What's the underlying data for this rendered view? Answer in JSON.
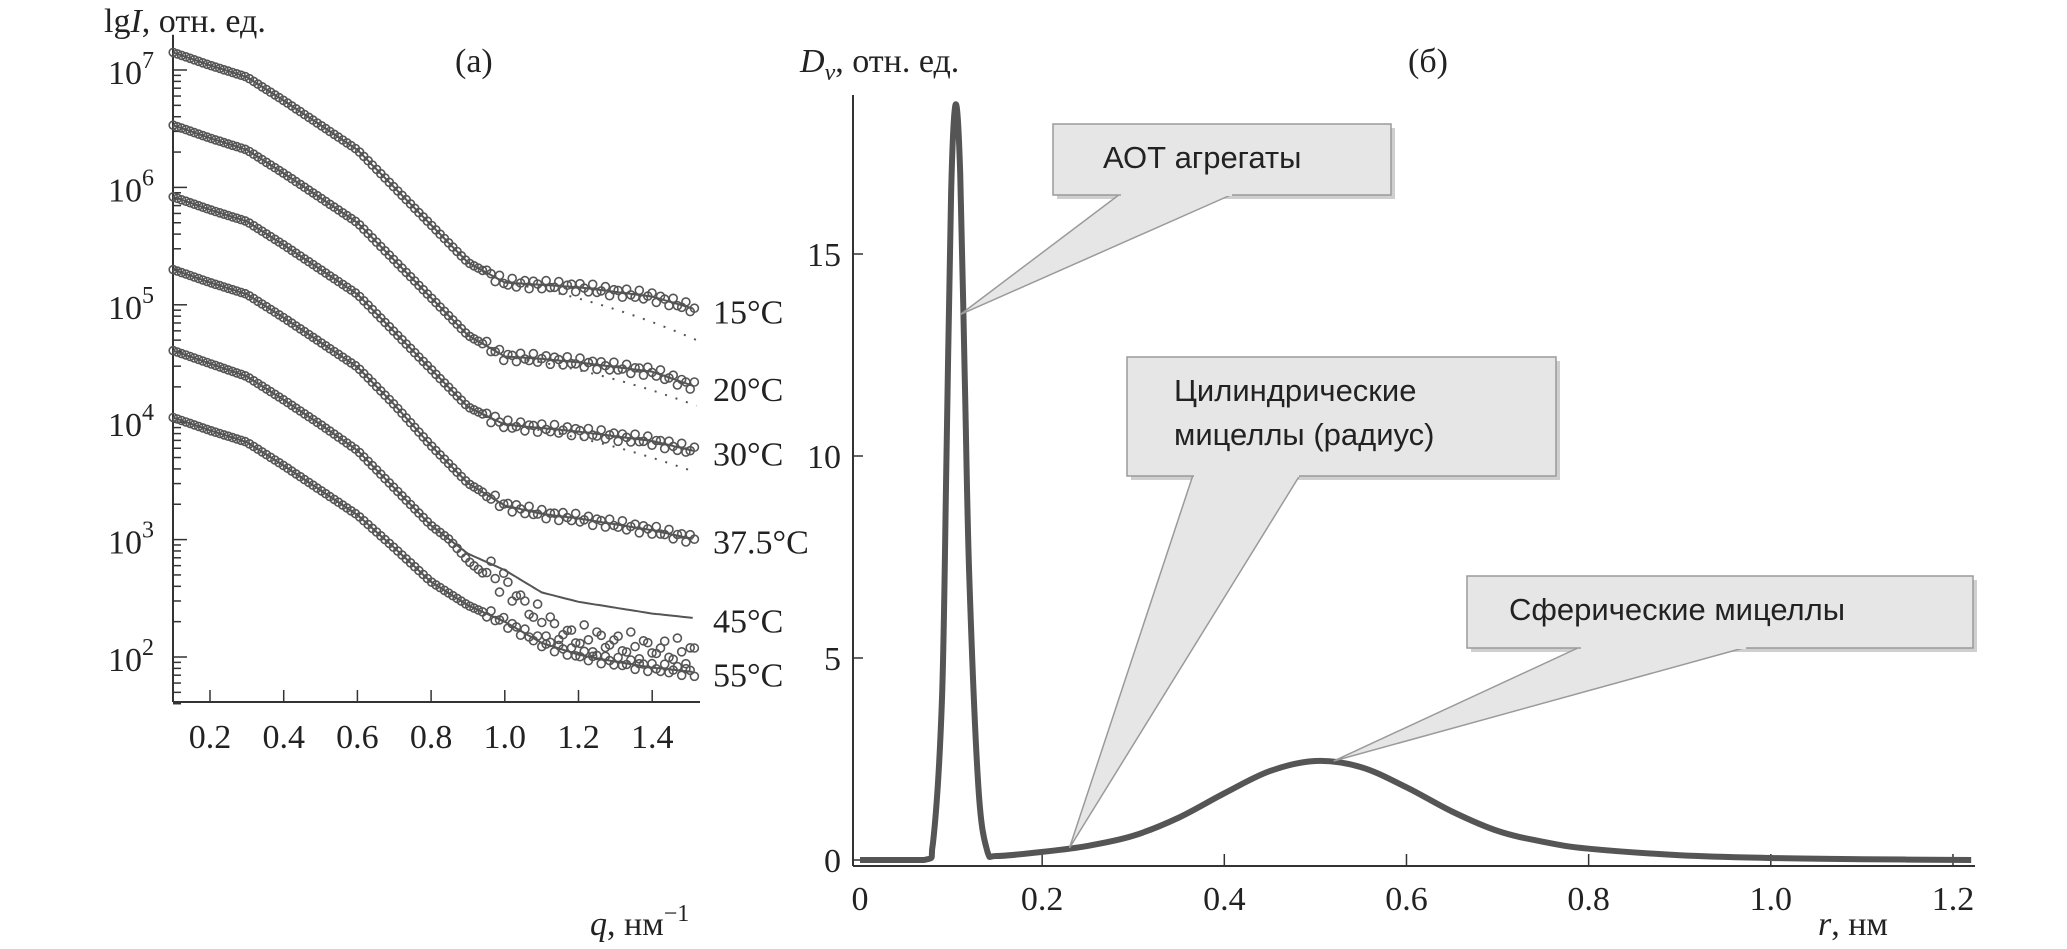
{
  "chart_data": [
    {
      "type": "line",
      "panel_label": "(а)",
      "ylabel": "lgI, отн. ед.",
      "ylabel_parts": {
        "pre": "lg",
        "ital": "I",
        "post": ", отн. ед."
      },
      "xlabel_parts": {
        "ital": "q",
        "post": ", нм",
        "sup": "−1"
      },
      "xlabel": "q, нм−1",
      "yscale": "log",
      "xlim": [
        0.1,
        1.53
      ],
      "ylim_log10": [
        1.6,
        7.3
      ],
      "x_ticks": [
        0.2,
        0.4,
        0.6,
        0.8,
        1.0,
        1.2,
        1.4
      ],
      "x_tick_labels": [
        "0.2",
        "0.4",
        "0.6",
        "0.8",
        "1.0",
        "1.2",
        "1.4"
      ],
      "y_ticks_log10": [
        2,
        3,
        4,
        5,
        6,
        7
      ],
      "y_tick_labels": [
        {
          "base": "10",
          "exp": "2"
        },
        {
          "base": "10",
          "exp": "3"
        },
        {
          "base": "10",
          "exp": "4"
        },
        {
          "base": "10",
          "exp": "5"
        },
        {
          "base": "10",
          "exp": "6"
        },
        {
          "base": "10",
          "exp": "7"
        }
      ],
      "q": [
        0.1,
        0.2,
        0.3,
        0.4,
        0.5,
        0.6,
        0.7,
        0.8,
        0.9,
        1.0,
        1.1,
        1.2,
        1.3,
        1.4,
        1.52
      ],
      "series": [
        {
          "name": "15°C",
          "log10_fit": [
            7.15,
            7.04,
            6.94,
            6.74,
            6.53,
            6.32,
            6.0,
            5.68,
            5.36,
            5.19,
            5.17,
            5.15,
            5.11,
            5.07,
            4.96
          ],
          "dotted_log10": [
            [
              1.0,
              5.19
            ],
            [
              1.52,
              4.7
            ]
          ],
          "data_offset_high_q": 0
        },
        {
          "name": "20°C",
          "log10_fit": [
            6.53,
            6.42,
            6.32,
            6.12,
            5.91,
            5.7,
            5.38,
            5.06,
            4.74,
            4.56,
            4.54,
            4.51,
            4.47,
            4.43,
            4.3
          ],
          "dotted_log10": [
            [
              1.0,
              4.56
            ],
            [
              1.52,
              4.14
            ]
          ],
          "data_offset_high_q": 0
        },
        {
          "name": "30°C",
          "log10_fit": [
            5.92,
            5.81,
            5.71,
            5.51,
            5.3,
            5.09,
            4.77,
            4.45,
            4.13,
            3.98,
            3.95,
            3.92,
            3.88,
            3.84,
            3.75
          ],
          "dotted_log10": [
            [
              1.0,
              3.98
            ],
            [
              1.52,
              3.57
            ]
          ],
          "data_offset_high_q": 0
        },
        {
          "name": "37.5°C",
          "log10_fit": [
            5.3,
            5.19,
            5.09,
            4.89,
            4.68,
            4.47,
            4.15,
            3.8,
            3.48,
            3.29,
            3.22,
            3.18,
            3.13,
            3.08,
            3.0
          ],
          "dotted_log10": [],
          "data_offset_high_q": 0
        },
        {
          "name": "45°C",
          "log10_fit": [
            4.61,
            4.5,
            4.39,
            4.19,
            3.98,
            3.76,
            3.44,
            3.12,
            2.88,
            2.74,
            2.55,
            2.47,
            2.42,
            2.37,
            2.33
          ],
          "dotted_log10": [],
          "data_offset_high_q": -0.3
        },
        {
          "name": "55°C",
          "log10_fit": [
            4.04,
            3.93,
            3.83,
            3.63,
            3.42,
            3.21,
            2.93,
            2.64,
            2.44,
            2.3,
            2.12,
            2.02,
            1.96,
            1.91,
            1.87
          ],
          "dotted_log10": [],
          "data_offset_high_q": 0
        }
      ]
    },
    {
      "type": "line",
      "panel_label": "(б)",
      "ylabel": "Dv, отн. ед.",
      "ylabel_parts": {
        "ital": "D",
        "sub": "v",
        "post": ", отн. ед."
      },
      "xlabel": "r, нм",
      "xlabel_parts": {
        "ital": "r",
        "post": ", нм"
      },
      "xlim": [
        0,
        1.23
      ],
      "ylim": [
        0,
        19
      ],
      "x_ticks": [
        0,
        0.2,
        0.4,
        0.6,
        0.8,
        1.0,
        1.2
      ],
      "x_tick_labels": [
        "0",
        "0.2",
        "0.4",
        "0.6",
        "0.8",
        "1.0",
        "1.2"
      ],
      "y_ticks": [
        0,
        5,
        10,
        15
      ],
      "y_tick_labels": [
        "0",
        "5",
        "10",
        "15"
      ],
      "series": [
        {
          "name": "Dv",
          "x": [
            0,
            0.07,
            0.08,
            0.09,
            0.095,
            0.1,
            0.105,
            0.11,
            0.115,
            0.12,
            0.13,
            0.14,
            0.15,
            0.2,
            0.25,
            0.3,
            0.35,
            0.4,
            0.45,
            0.5,
            0.55,
            0.6,
            0.65,
            0.7,
            0.75,
            0.8,
            0.9,
            1.0,
            1.1,
            1.22
          ],
          "y": [
            0,
            0,
            0.4,
            4,
            10,
            16.5,
            18.7,
            17,
            12,
            7,
            1.8,
            0.2,
            0.1,
            0.2,
            0.35,
            0.6,
            1.05,
            1.65,
            2.2,
            2.45,
            2.3,
            1.8,
            1.2,
            0.72,
            0.45,
            0.28,
            0.12,
            0.05,
            0.02,
            0
          ]
        }
      ],
      "annotations": [
        {
          "text": [
            "АОТ агрегаты"
          ],
          "points_to": [
            0.11,
            13.5
          ]
        },
        {
          "text": [
            "Цилиндрические",
            "мицеллы (радиус)"
          ],
          "points_to": [
            0.23,
            0.3
          ]
        },
        {
          "text": [
            "Сферические мицеллы"
          ],
          "points_to": [
            0.52,
            2.45
          ]
        }
      ]
    }
  ],
  "colors": {
    "curve": "#555555",
    "axis": "#333333",
    "callout_fill": "#e6e6e6",
    "callout_stroke": "#9a9a9a",
    "marker": "#555555"
  }
}
